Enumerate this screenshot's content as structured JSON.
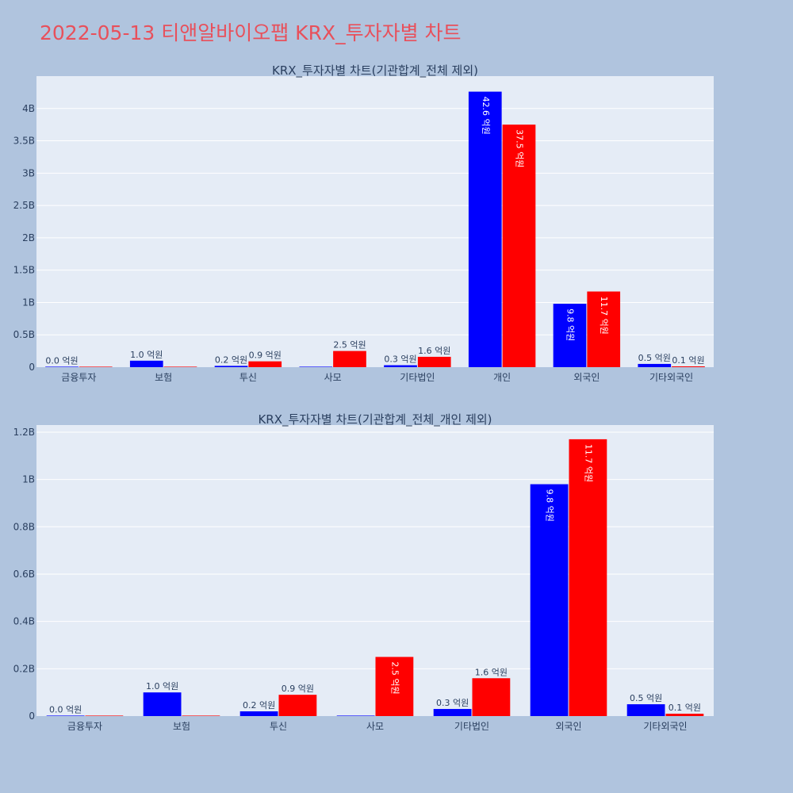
{
  "page": {
    "title": "2022-05-13 티앤알바이오팹 KRX_투자자별 차트",
    "background": "#b0c4de",
    "plot_background": "#e5ecf6",
    "title_color": "#e8505b"
  },
  "chart_data": [
    {
      "type": "bar",
      "title": "KRX_투자자별 차트(기관합계_전체 제외)",
      "categories": [
        "금융투자",
        "보험",
        "투신",
        "사모",
        "기타법인",
        "개인",
        "외국인",
        "기타외국인"
      ],
      "series": [
        {
          "color": "#0000ff",
          "values": [
            0,
            100000000,
            20000000,
            0,
            30000000,
            4260000000,
            980000000,
            50000000
          ],
          "labels": [
            "0.0 억원",
            "1.0 억원",
            "0.2 억원",
            "",
            "0.3 억원",
            "42.6 억원",
            "9.8 억원",
            "0.5 억원"
          ]
        },
        {
          "color": "#ff0000",
          "values": [
            0,
            0,
            90000000,
            250000000,
            160000000,
            3750000000,
            1170000000,
            10000000
          ],
          "labels": [
            "",
            "",
            "0.9 억원",
            "2.5 억원",
            "1.6 억원",
            "37.5 억원",
            "11.7 억원",
            "0.1 억원"
          ]
        }
      ],
      "yticks": [
        0,
        500000000,
        1000000000,
        1500000000,
        2000000000,
        2500000000,
        3000000000,
        3500000000,
        4000000000
      ],
      "ytick_labels": [
        "0",
        "0.5B",
        "1B",
        "1.5B",
        "2B",
        "2.5B",
        "3B",
        "3.5B",
        "4B"
      ],
      "ylim": [
        0,
        4500000000
      ],
      "xlabel": "",
      "ylabel": "",
      "grid": true
    },
    {
      "type": "bar",
      "title": "KRX_투자자별 차트(기관합계_전체_개인 제외)",
      "categories": [
        "금융투자",
        "보험",
        "투신",
        "사모",
        "기타법인",
        "외국인",
        "기타외국인"
      ],
      "series": [
        {
          "color": "#0000ff",
          "values": [
            0,
            100000000,
            20000000,
            0,
            30000000,
            980000000,
            50000000
          ],
          "labels": [
            "0.0 억원",
            "1.0 억원",
            "0.2 억원",
            "",
            "0.3 억원",
            "9.8 억원",
            "0.5 억원"
          ]
        },
        {
          "color": "#ff0000",
          "values": [
            0,
            0,
            90000000,
            250000000,
            160000000,
            1170000000,
            10000000
          ],
          "labels": [
            "",
            "",
            "0.9 억원",
            "2.5 억원",
            "1.6 억원",
            "11.7 억원",
            "0.1 억원"
          ]
        }
      ],
      "yticks": [
        0,
        200000000,
        400000000,
        600000000,
        800000000,
        1000000000,
        1200000000
      ],
      "ytick_labels": [
        "0",
        "0.2B",
        "0.4B",
        "0.6B",
        "0.8B",
        "1B",
        "1.2B"
      ],
      "ylim": [
        0,
        1230000000
      ],
      "xlabel": "",
      "ylabel": "",
      "grid": true
    }
  ]
}
